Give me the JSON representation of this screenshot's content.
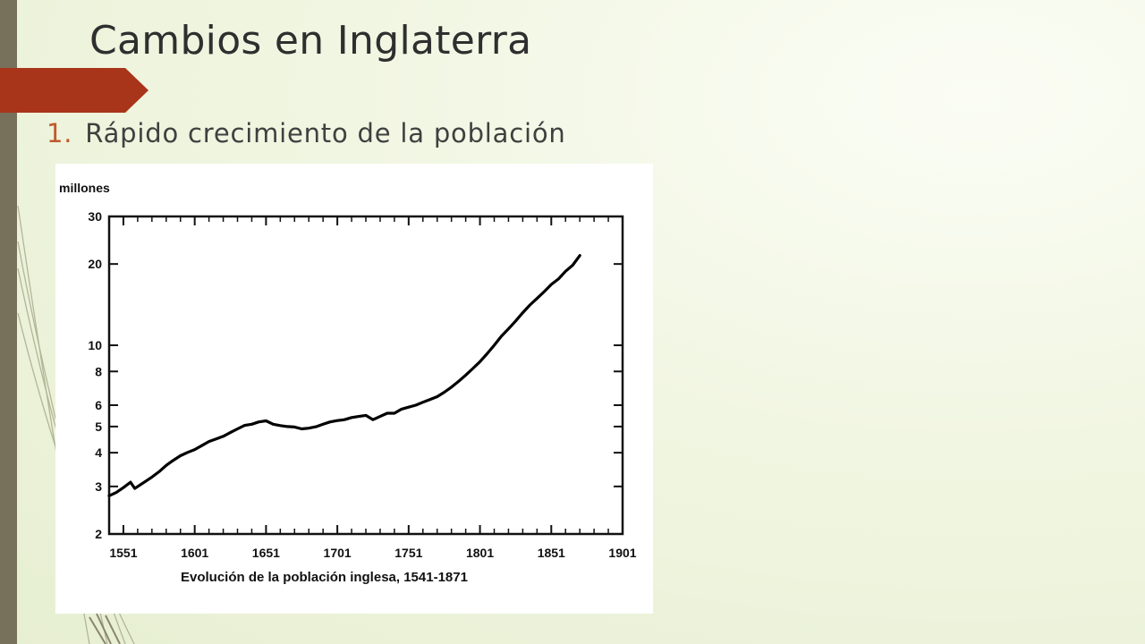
{
  "slide": {
    "title": "Cambios en Inglaterra",
    "bullet_number": "1.",
    "bullet_text": "Rápido crecimiento de la población",
    "colors": {
      "accent": "#a8341a",
      "left_bar": "#77705a",
      "title": "#2f2f2f",
      "bullet_number": "#c0582c"
    }
  },
  "chart_data": {
    "type": "line",
    "ylabel": "millones",
    "xlabel": "Evolución de la población inglesa, 1541-1871",
    "y_scale": "log",
    "ylim": [
      2,
      30
    ],
    "xlim": [
      1541,
      1901
    ],
    "x_ticks": [
      1551,
      1601,
      1651,
      1701,
      1751,
      1801,
      1851,
      1901
    ],
    "x_tick_labels": [
      "1551",
      "1601",
      "1651",
      "1701",
      "1751",
      "1801",
      "1851",
      "1901"
    ],
    "y_ticks": [
      2,
      3,
      4,
      5,
      6,
      8,
      10,
      20,
      30
    ],
    "y_tick_labels": [
      "2",
      "3",
      "4",
      "5",
      "6",
      "8",
      "10",
      "20",
      "30"
    ],
    "grid": false,
    "series": [
      {
        "x": [
          1541,
          1546,
          1551,
          1556,
          1559,
          1566,
          1571,
          1576,
          1581,
          1586,
          1591,
          1596,
          1601,
          1606,
          1611,
          1616,
          1621,
          1626,
          1631,
          1636,
          1641,
          1646,
          1651,
          1656,
          1661,
          1666,
          1671,
          1676,
          1681,
          1686,
          1691,
          1696,
          1701,
          1706,
          1711,
          1716,
          1721,
          1726,
          1731,
          1736,
          1741,
          1746,
          1751,
          1756,
          1761,
          1766,
          1771,
          1776,
          1781,
          1786,
          1791,
          1796,
          1801,
          1806,
          1811,
          1816,
          1821,
          1826,
          1831,
          1836,
          1841,
          1846,
          1851,
          1856,
          1861,
          1866,
          1871
        ],
        "y": [
          2.77,
          2.85,
          2.97,
          3.11,
          2.95,
          3.12,
          3.25,
          3.4,
          3.59,
          3.75,
          3.9,
          4.01,
          4.11,
          4.25,
          4.4,
          4.5,
          4.6,
          4.75,
          4.9,
          5.05,
          5.1,
          5.2,
          5.25,
          5.1,
          5.04,
          5.0,
          4.98,
          4.9,
          4.93,
          4.99,
          5.1,
          5.2,
          5.26,
          5.3,
          5.4,
          5.45,
          5.5,
          5.3,
          5.45,
          5.6,
          5.6,
          5.8,
          5.9,
          6.0,
          6.15,
          6.3,
          6.45,
          6.7,
          7.0,
          7.35,
          7.75,
          8.2,
          8.7,
          9.3,
          10.0,
          10.8,
          11.5,
          12.3,
          13.2,
          14.1,
          14.9,
          15.8,
          16.8,
          17.6,
          18.8,
          19.8,
          21.5
        ]
      }
    ]
  }
}
